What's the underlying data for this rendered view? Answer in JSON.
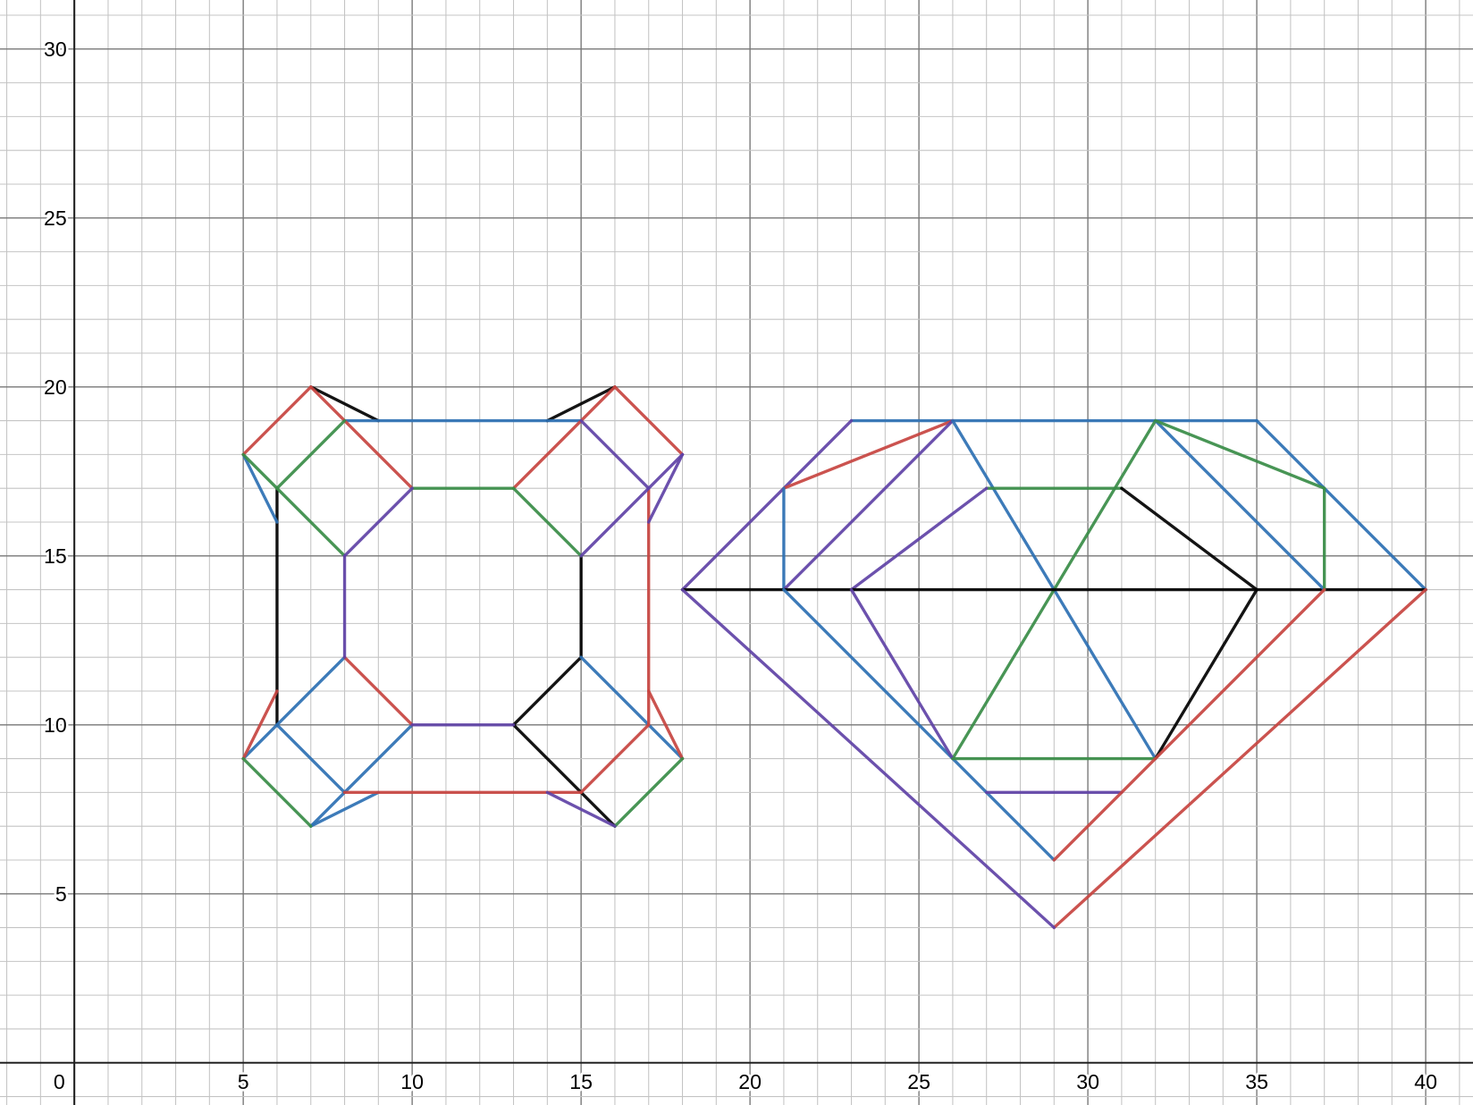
{
  "chart_data": {
    "type": "line",
    "title": "",
    "xlabel": "",
    "ylabel": "",
    "xlim": [
      -2.2,
      41.4
    ],
    "ylim": [
      -1.25,
      31.45
    ],
    "grid": true,
    "minor_step": 1,
    "major_step": 5,
    "x_ticks": [
      "0",
      "5",
      "10",
      "15",
      "20",
      "25",
      "30",
      "35",
      "40"
    ],
    "x_tick_values": [
      0,
      5,
      10,
      15,
      20,
      25,
      30,
      35,
      40
    ],
    "y_ticks": [
      "5",
      "10",
      "15",
      "20",
      "25",
      "30"
    ],
    "y_tick_values": [
      5,
      10,
      15,
      20,
      25,
      30
    ],
    "colors": {
      "red": "#c74440",
      "blue": "#2d70b3",
      "green": "#388c46",
      "purple": "#6042a6",
      "black": "#000000"
    },
    "segments": [
      {
        "color": "black",
        "from": [
          7,
          20
        ],
        "to": [
          9,
          19
        ]
      },
      {
        "color": "black",
        "from": [
          14,
          19
        ],
        "to": [
          16,
          20
        ]
      },
      {
        "color": "black",
        "from": [
          6,
          17
        ],
        "to": [
          6,
          10
        ]
      },
      {
        "color": "black",
        "from": [
          15,
          15
        ],
        "to": [
          15,
          12
        ]
      },
      {
        "color": "black",
        "from": [
          13,
          10
        ],
        "to": [
          15,
          12
        ]
      },
      {
        "color": "black",
        "from": [
          13,
          10
        ],
        "to": [
          16,
          7
        ]
      },
      {
        "color": "blue",
        "from": [
          8,
          19
        ],
        "to": [
          15,
          19
        ]
      },
      {
        "color": "blue",
        "from": [
          5,
          18
        ],
        "to": [
          6,
          16
        ]
      },
      {
        "color": "blue",
        "from": [
          5,
          9
        ],
        "to": [
          8,
          12
        ]
      },
      {
        "color": "blue",
        "from": [
          6,
          10
        ],
        "to": [
          8,
          8
        ]
      },
      {
        "color": "blue",
        "from": [
          8,
          8
        ],
        "to": [
          10,
          10
        ]
      },
      {
        "color": "blue",
        "from": [
          7,
          7
        ],
        "to": [
          8,
          8
        ]
      },
      {
        "color": "blue",
        "from": [
          7,
          7
        ],
        "to": [
          9,
          8
        ]
      },
      {
        "color": "blue",
        "from": [
          15,
          12
        ],
        "to": [
          18,
          9
        ]
      },
      {
        "color": "red",
        "from": [
          5,
          18
        ],
        "to": [
          7,
          20
        ]
      },
      {
        "color": "red",
        "from": [
          7,
          20
        ],
        "to": [
          10,
          17
        ]
      },
      {
        "color": "red",
        "from": [
          13,
          17
        ],
        "to": [
          16,
          20
        ]
      },
      {
        "color": "red",
        "from": [
          16,
          20
        ],
        "to": [
          18,
          18
        ]
      },
      {
        "color": "red",
        "from": [
          17,
          17
        ],
        "to": [
          17,
          10
        ]
      },
      {
        "color": "red",
        "from": [
          17,
          11
        ],
        "to": [
          18,
          9
        ]
      },
      {
        "color": "red",
        "from": [
          15,
          8
        ],
        "to": [
          17,
          10
        ]
      },
      {
        "color": "red",
        "from": [
          8,
          8
        ],
        "to": [
          15,
          8
        ]
      },
      {
        "color": "red",
        "from": [
          8,
          12
        ],
        "to": [
          10,
          10
        ]
      },
      {
        "color": "red",
        "from": [
          5,
          9
        ],
        "to": [
          6,
          11
        ]
      },
      {
        "color": "green",
        "from": [
          6,
          17
        ],
        "to": [
          8,
          19
        ]
      },
      {
        "color": "green",
        "from": [
          5,
          18
        ],
        "to": [
          8,
          15
        ]
      },
      {
        "color": "green",
        "from": [
          10,
          17
        ],
        "to": [
          13,
          17
        ]
      },
      {
        "color": "green",
        "from": [
          13,
          17
        ],
        "to": [
          15,
          15
        ]
      },
      {
        "color": "green",
        "from": [
          5,
          9
        ],
        "to": [
          7,
          7
        ]
      },
      {
        "color": "green",
        "from": [
          16,
          7
        ],
        "to": [
          18,
          9
        ]
      },
      {
        "color": "purple",
        "from": [
          8,
          15
        ],
        "to": [
          10,
          17
        ]
      },
      {
        "color": "purple",
        "from": [
          8,
          15
        ],
        "to": [
          8,
          12
        ]
      },
      {
        "color": "purple",
        "from": [
          15,
          19
        ],
        "to": [
          17,
          17
        ]
      },
      {
        "color": "purple",
        "from": [
          15,
          15
        ],
        "to": [
          18,
          18
        ]
      },
      {
        "color": "purple",
        "from": [
          17,
          16
        ],
        "to": [
          18,
          18
        ]
      },
      {
        "color": "purple",
        "from": [
          10,
          10
        ],
        "to": [
          13,
          10
        ]
      },
      {
        "color": "purple",
        "from": [
          14,
          8
        ],
        "to": [
          16,
          7
        ]
      },
      {
        "color": "blue",
        "from": [
          23,
          19
        ],
        "to": [
          35,
          19
        ]
      },
      {
        "color": "blue",
        "from": [
          35,
          19
        ],
        "to": [
          40,
          14
        ]
      },
      {
        "color": "purple",
        "from": [
          18,
          14
        ],
        "to": [
          23,
          19
        ]
      },
      {
        "color": "red",
        "from": [
          21,
          17
        ],
        "to": [
          26,
          19
        ]
      },
      {
        "color": "blue",
        "from": [
          21,
          17
        ],
        "to": [
          21,
          14
        ]
      },
      {
        "color": "purple",
        "from": [
          21,
          14
        ],
        "to": [
          26,
          19
        ]
      },
      {
        "color": "blue",
        "from": [
          26,
          19
        ],
        "to": [
          32,
          9
        ]
      },
      {
        "color": "green",
        "from": [
          32,
          19
        ],
        "to": [
          26,
          9
        ]
      },
      {
        "color": "green",
        "from": [
          27,
          17
        ],
        "to": [
          31,
          17
        ]
      },
      {
        "color": "purple",
        "from": [
          23,
          14
        ],
        "to": [
          27,
          17
        ]
      },
      {
        "color": "black",
        "from": [
          31,
          17
        ],
        "to": [
          35,
          14
        ]
      },
      {
        "color": "black",
        "from": [
          35,
          14
        ],
        "to": [
          32,
          9
        ]
      },
      {
        "color": "black",
        "from": [
          18,
          14
        ],
        "to": [
          40,
          14
        ]
      },
      {
        "color": "blue",
        "from": [
          32,
          19
        ],
        "to": [
          37,
          14
        ]
      },
      {
        "color": "green",
        "from": [
          32,
          19
        ],
        "to": [
          37,
          17
        ]
      },
      {
        "color": "green",
        "from": [
          37,
          17
        ],
        "to": [
          37,
          14
        ]
      },
      {
        "color": "blue",
        "from": [
          21,
          14
        ],
        "to": [
          29,
          6
        ]
      },
      {
        "color": "purple",
        "from": [
          23,
          14
        ],
        "to": [
          26,
          9
        ]
      },
      {
        "color": "green",
        "from": [
          26,
          9
        ],
        "to": [
          32,
          9
        ]
      },
      {
        "color": "purple",
        "from": [
          27,
          8
        ],
        "to": [
          31,
          8
        ]
      },
      {
        "color": "red",
        "from": [
          29,
          6
        ],
        "to": [
          37,
          14
        ]
      },
      {
        "color": "red",
        "from": [
          29,
          4
        ],
        "to": [
          40,
          14
        ]
      },
      {
        "color": "purple",
        "from": [
          18,
          14
        ],
        "to": [
          29,
          4
        ]
      }
    ]
  }
}
